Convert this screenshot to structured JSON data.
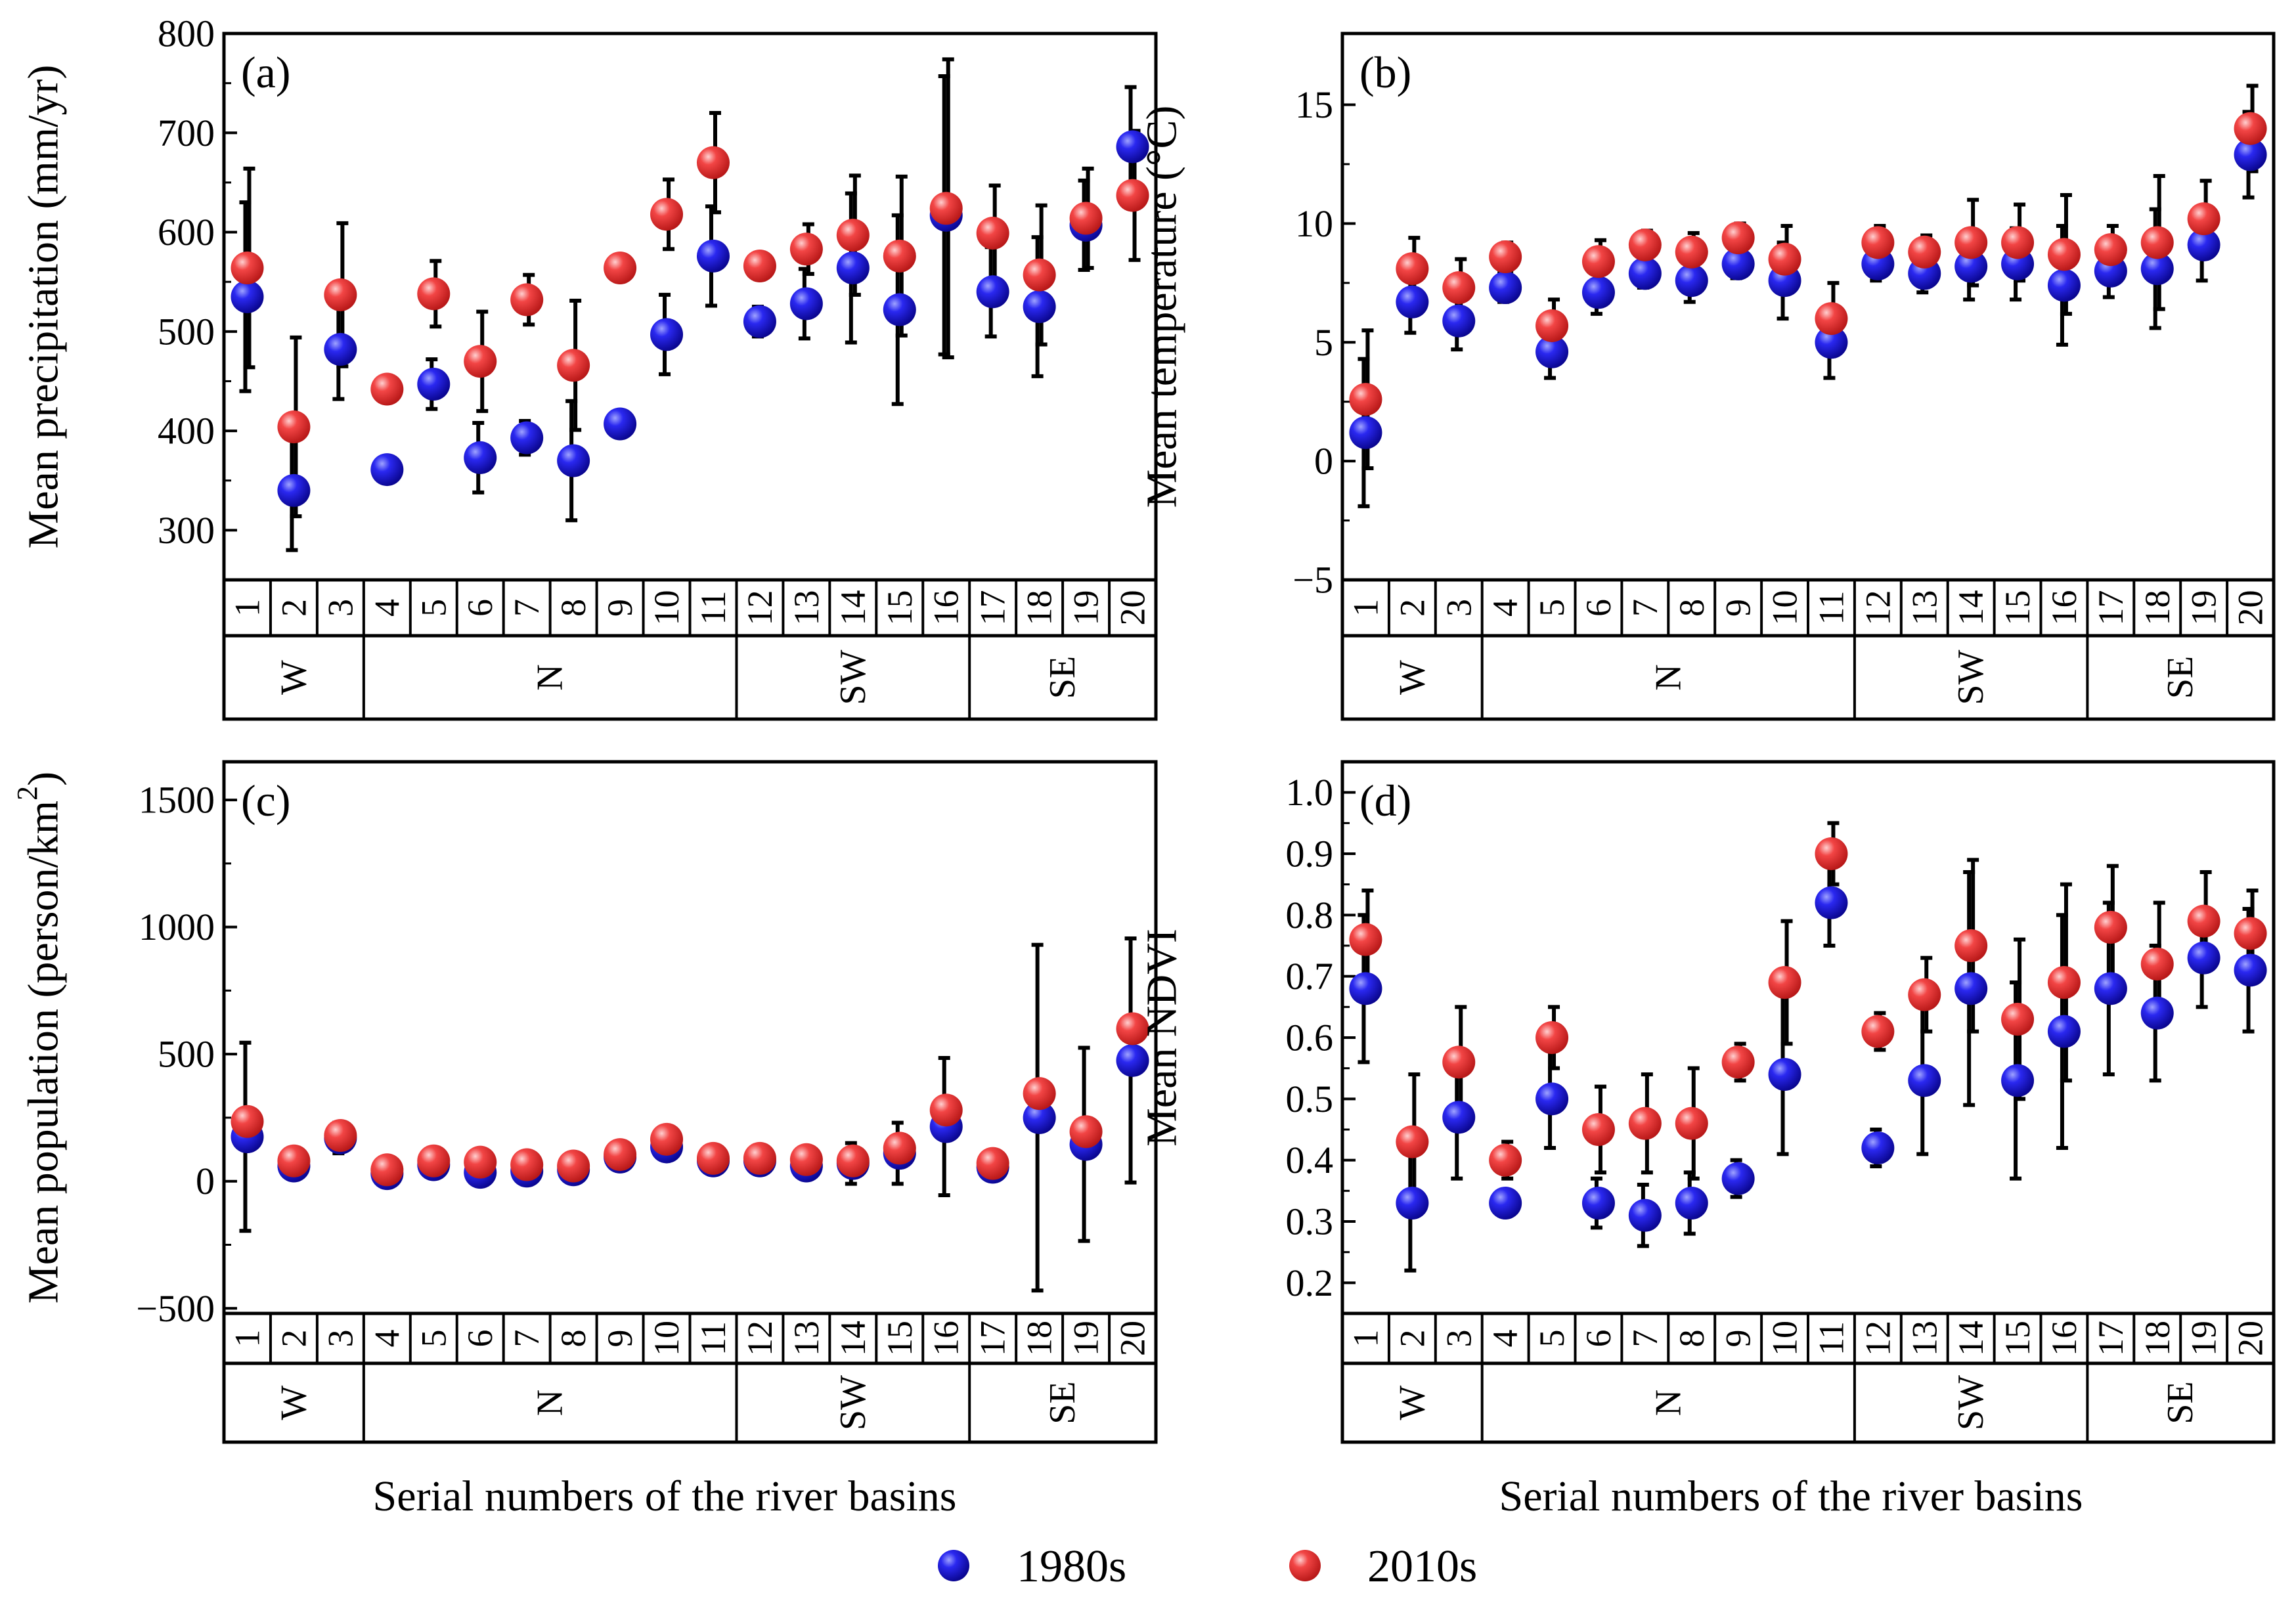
{
  "figure": {
    "shared_xlabel": "Serial numbers of the river basins",
    "legend": [
      {
        "label": "1980s",
        "color": "#1a14e6"
      },
      {
        "label": "2010s",
        "color": "#f03a3a"
      }
    ],
    "categories": [
      "1",
      "2",
      "3",
      "4",
      "5",
      "6",
      "7",
      "8",
      "9",
      "10",
      "11",
      "12",
      "13",
      "14",
      "15",
      "16",
      "17",
      "18",
      "19",
      "20"
    ],
    "regions": [
      {
        "label": "W",
        "start": 1,
        "end": 3
      },
      {
        "label": "N",
        "start": 4,
        "end": 11
      },
      {
        "label": "SW",
        "start": 12,
        "end": 16
      },
      {
        "label": "SE",
        "start": 17,
        "end": 20
      }
    ]
  },
  "chart_data": [
    {
      "type": "scatter",
      "panel": "(a)",
      "ylabel": "Mean precipitation (mm/yr)",
      "xlabel": "Serial numbers of the river basins",
      "ylim": [
        250,
        800
      ],
      "yticks": [
        300,
        400,
        500,
        600,
        700,
        800
      ],
      "series": [
        {
          "name": "1980s",
          "values": [
            535,
            340,
            482,
            361,
            447,
            373,
            393,
            370,
            407,
            497,
            576,
            510,
            528,
            564,
            522,
            617,
            540,
            525,
            607,
            686
          ],
          "errors": [
            95,
            60,
            50,
            8,
            25,
            35,
            17,
            60,
            10,
            40,
            50,
            15,
            35,
            75,
            95,
            140,
            45,
            70,
            45,
            60
          ]
        },
        {
          "name": "2010s",
          "values": [
            564,
            404,
            537,
            442,
            538,
            470,
            532,
            466,
            564,
            618,
            670,
            566,
            583,
            597,
            576,
            624,
            599,
            557,
            614,
            637
          ],
          "errors": [
            100,
            90,
            72,
            10,
            33,
            50,
            25,
            65,
            12,
            35,
            50,
            12,
            25,
            60,
            80,
            150,
            48,
            70,
            50,
            65
          ]
        }
      ]
    },
    {
      "type": "scatter",
      "panel": "(b)",
      "ylabel": "Mean temperature (°C)",
      "xlabel": "Serial numbers of the river basins",
      "ylim": [
        -5,
        18
      ],
      "yticks": [
        -5,
        0,
        5,
        10,
        15
      ],
      "series": [
        {
          "name": "1980s",
          "values": [
            1.2,
            6.7,
            5.9,
            7.3,
            4.6,
            7.1,
            7.9,
            7.6,
            8.3,
            7.6,
            5.0,
            8.3,
            7.9,
            8.2,
            8.3,
            7.4,
            8.0,
            8.1,
            9.1,
            12.9
          ],
          "errors": [
            3.1,
            1.3,
            1.2,
            0.6,
            1.1,
            0.9,
            0.6,
            0.9,
            0.6,
            1.6,
            1.5,
            0.7,
            0.8,
            1.4,
            1.5,
            2.5,
            1.1,
            2.5,
            1.5,
            1.8
          ]
        },
        {
          "name": "2010s",
          "values": [
            2.6,
            8.1,
            7.3,
            8.6,
            5.7,
            8.4,
            9.1,
            8.8,
            9.4,
            8.5,
            6.0,
            9.2,
            8.8,
            9.2,
            9.2,
            8.7,
            8.9,
            9.2,
            10.2,
            14.0
          ],
          "errors": [
            2.9,
            1.3,
            1.2,
            0.6,
            1.1,
            0.9,
            0.6,
            0.8,
            0.6,
            1.4,
            1.5,
            0.7,
            0.7,
            1.8,
            1.6,
            2.5,
            1.0,
            2.8,
            1.6,
            1.8
          ]
        }
      ]
    },
    {
      "type": "scatter",
      "panel": "(c)",
      "ylabel_main": "Mean population (person/km",
      "ylabel_sup": "2",
      "ylabel_end": ")",
      "xlabel": "Serial numbers of the river basins",
      "ylim": [
        -520,
        1650
      ],
      "yticks": [
        -500,
        0,
        500,
        1000,
        1500
      ],
      "series": [
        {
          "name": "1980s",
          "values": [
            175,
            60,
            170,
            30,
            65,
            35,
            40,
            45,
            95,
            135,
            80,
            80,
            60,
            70,
            110,
            215,
            55,
            250,
            145,
            475
          ],
          "errors": [
            370,
            30,
            60,
            20,
            35,
            40,
            35,
            30,
            35,
            45,
            35,
            30,
            35,
            80,
            120,
            270,
            35,
            680,
            380,
            480
          ]
        },
        {
          "name": "2010s",
          "values": [
            235,
            80,
            180,
            45,
            80,
            75,
            65,
            60,
            105,
            165,
            90,
            90,
            85,
            80,
            130,
            280,
            70,
            345,
            195,
            600
          ]
        }
      ]
    },
    {
      "type": "scatter",
      "panel": "(d)",
      "ylabel": "Mean NDVI",
      "xlabel": "Serial numbers of the river basins",
      "ylim": [
        0.15,
        1.05
      ],
      "yticks": [
        0.2,
        0.3,
        0.4,
        0.5,
        0.6,
        0.7,
        0.8,
        0.9,
        1.0
      ],
      "series": [
        {
          "name": "1980s",
          "values": [
            0.68,
            0.33,
            0.47,
            0.33,
            0.5,
            0.33,
            0.31,
            0.33,
            0.37,
            0.54,
            0.82,
            0.42,
            0.53,
            0.68,
            0.53,
            0.61,
            0.68,
            0.64,
            0.73,
            0.71
          ],
          "errors": [
            0.12,
            0.11,
            0.1,
            0.02,
            0.08,
            0.04,
            0.05,
            0.05,
            0.03,
            0.13,
            0.07,
            0.03,
            0.12,
            0.19,
            0.16,
            0.19,
            0.14,
            0.11,
            0.08,
            0.1
          ]
        },
        {
          "name": "2010s",
          "values": [
            0.76,
            0.43,
            0.56,
            0.4,
            0.6,
            0.45,
            0.46,
            0.46,
            0.56,
            0.69,
            0.9,
            0.61,
            0.67,
            0.75,
            0.63,
            0.69,
            0.78,
            0.72,
            0.79,
            0.77
          ],
          "errors": [
            0.08,
            0.11,
            0.09,
            0.03,
            0.05,
            0.07,
            0.08,
            0.09,
            0.03,
            0.1,
            0.05,
            0.03,
            0.06,
            0.14,
            0.13,
            0.16,
            0.1,
            0.1,
            0.08,
            0.07
          ]
        }
      ]
    }
  ]
}
